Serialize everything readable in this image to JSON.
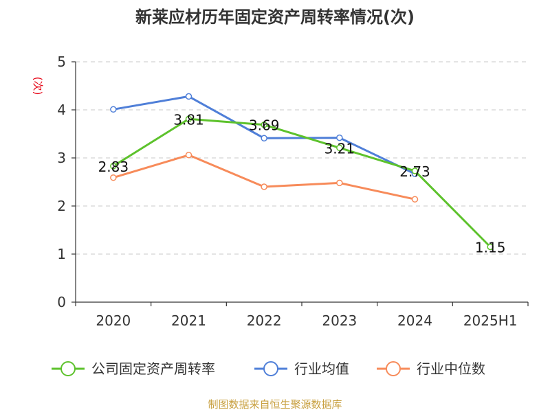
{
  "chart_data": {
    "type": "line",
    "title": "新莱应材历年固定资产周转率情况(次)",
    "ylabel": "(次)",
    "xlabel": "",
    "categories": [
      "2020",
      "2021",
      "2022",
      "2023",
      "2024",
      "2025H1"
    ],
    "ylim": [
      0,
      5
    ],
    "yticks": [
      0,
      1,
      2,
      3,
      4,
      5
    ],
    "grid": true,
    "legend_position": "bottom",
    "series": [
      {
        "name": "公司固定资产周转率",
        "color": "#5dc22c",
        "values": [
          2.83,
          3.81,
          3.69,
          3.21,
          2.73,
          1.15
        ],
        "labels": [
          "2.83",
          "3.81",
          "3.69",
          "3.21",
          "2.73",
          "1.15"
        ]
      },
      {
        "name": "行业均值",
        "color": "#4f7fd8",
        "values": [
          4.01,
          4.28,
          3.41,
          3.42,
          2.67,
          null
        ]
      },
      {
        "name": "行业中位数",
        "color": "#f78b5a",
        "values": [
          2.59,
          3.06,
          2.4,
          2.48,
          2.14,
          null
        ]
      }
    ],
    "source": "制图数据来自恒生聚源数据库"
  }
}
